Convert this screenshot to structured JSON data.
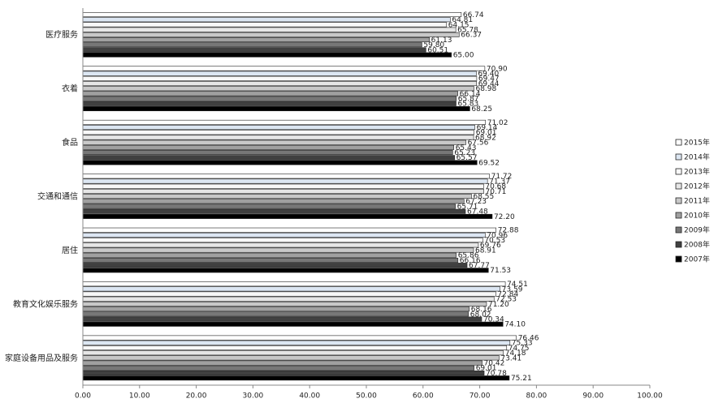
{
  "chart_data": {
    "type": "hbar",
    "categories": [
      "医疗服务",
      "衣着",
      "食品",
      "交通和通信",
      "居住",
      "教育文化娱乐服务",
      "家庭设备用品及服务"
    ],
    "series": [
      {
        "name": "2015年",
        "color": "#ffffff",
        "values": [
          66.74,
          70.9,
          71.02,
          71.72,
          72.88,
          74.51,
          76.46
        ],
        "value_labels": [
          "66.74",
          "70.90",
          "71.02",
          "71.72",
          "72.88",
          "74.51",
          "76.46"
        ]
      },
      {
        "name": "2014年",
        "color": "#dce6f2",
        "values": [
          64.81,
          69.4,
          69.14,
          71.37,
          70.96,
          73.59,
          75.33
        ],
        "value_labels": [
          "64.81",
          "69.40",
          "69.14",
          "71.37",
          "70.96",
          "73.59",
          "75.33"
        ]
      },
      {
        "name": "2013年",
        "color": "#f8f8f8",
        "values": [
          64.15,
          69.47,
          69.01,
          70.68,
          70.53,
          72.84,
          74.75
        ],
        "value_labels": [
          "64.15",
          "69.47",
          "69.01",
          "70.68",
          "70.53",
          "72.84",
          "74.75"
        ]
      },
      {
        "name": "2012年",
        "color": "#e6e6e6",
        "values": [
          65.78,
          69.44,
          68.92,
          70.71,
          69.76,
          72.53,
          74.18
        ],
        "value_labels": [
          "65.78",
          "69.44",
          "68.92",
          "70.71",
          "69.76",
          "72.53",
          "74.18"
        ]
      },
      {
        "name": "2011年",
        "color": "#c8c8c8",
        "values": [
          66.37,
          68.98,
          67.56,
          68.55,
          68.91,
          71.2,
          73.41
        ],
        "value_labels": [
          "66.37",
          "68.98",
          "67.56",
          "68.55",
          "68.91",
          "71.20",
          "73.41"
        ]
      },
      {
        "name": "2010年",
        "color": "#a0a0a0",
        "values": [
          61.13,
          66.14,
          65.43,
          67.23,
          65.86,
          68.16,
          70.42
        ],
        "value_labels": [
          "61.13",
          "66.14",
          "65.43",
          "67.23",
          "65.86",
          "68.16",
          "70.42"
        ]
      },
      {
        "name": "2009年",
        "color": "#777777",
        "values": [
          59.8,
          65.87,
          65.23,
          65.71,
          66.16,
          68.02,
          69.01
        ],
        "value_labels": [
          "59.80",
          "65.87",
          "65.23",
          "65.71",
          "66.16",
          "68.02",
          "69.01"
        ]
      },
      {
        "name": "2008年",
        "color": "#404040",
        "values": [
          60.51,
          65.83,
          65.57,
          67.48,
          67.77,
          70.34,
          70.78
        ],
        "value_labels": [
          "60.51",
          "65.83",
          "65.57",
          "67.48",
          "67.77",
          "70.34",
          "70.78"
        ]
      },
      {
        "name": "2007年",
        "color": "#000000",
        "values": [
          65.0,
          68.25,
          69.52,
          72.2,
          71.53,
          74.1,
          75.21
        ],
        "value_labels": [
          "65.00",
          "68.25",
          "69.52",
          "72.20",
          "71.53",
          "74.10",
          "75.21"
        ]
      }
    ],
    "xlim": [
      0,
      100
    ],
    "xticks": [
      {
        "value": 0,
        "label": "0.00"
      },
      {
        "value": 10,
        "label": "10.00"
      },
      {
        "value": 20,
        "label": "20.00"
      },
      {
        "value": 30,
        "label": "30.00"
      },
      {
        "value": 40,
        "label": "40.00"
      },
      {
        "value": 50,
        "label": "50.00"
      },
      {
        "value": 60,
        "label": "60.00"
      },
      {
        "value": 70,
        "label": "70.00"
      },
      {
        "value": 80,
        "label": "80.00"
      },
      {
        "value": 90,
        "label": "90.00"
      },
      {
        "value": 100,
        "label": "100.00"
      }
    ],
    "legend": "right"
  }
}
